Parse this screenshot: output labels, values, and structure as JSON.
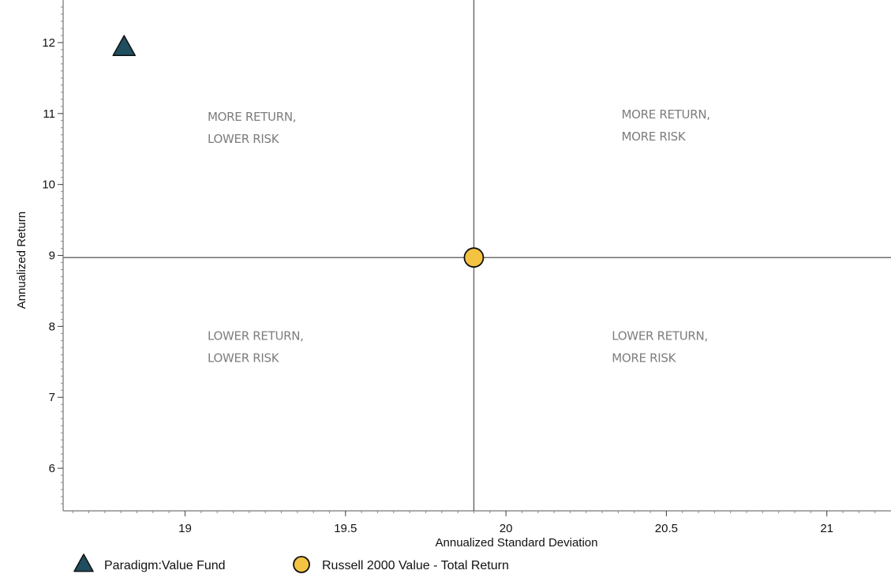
{
  "chart_data": {
    "type": "scatter",
    "xlabel": "Annualized Standard Deviation",
    "ylabel": "Annualized Return",
    "xlim": [
      18.62,
      21.2
    ],
    "ylim": [
      5.4,
      12.6
    ],
    "x_ticks": [
      19,
      19.5,
      20,
      20.5,
      21
    ],
    "y_ticks": [
      6,
      7,
      8,
      9,
      10,
      11,
      12
    ],
    "grid": false,
    "reference_lines": {
      "x": 19.9,
      "y": 8.97
    },
    "series": [
      {
        "name": "Paradigm:Value Fund",
        "marker": "triangle",
        "color": "#1f4e5e",
        "x": [
          18.81
        ],
        "y": [
          11.93
        ]
      },
      {
        "name": "Russell 2000 Value - Total Return",
        "marker": "circle",
        "color": "#f5c342",
        "x": [
          19.9
        ],
        "y": [
          8.97
        ]
      }
    ],
    "annotations": [
      {
        "lines": [
          "MORE RETURN,",
          "LOWER RISK"
        ],
        "x": 19.07,
        "y": 10.9
      },
      {
        "lines": [
          "MORE RETURN,",
          "MORE RISK"
        ],
        "x": 20.36,
        "y": 10.93
      },
      {
        "lines": [
          "LOWER RETURN,",
          "LOWER RISK"
        ],
        "x": 19.07,
        "y": 7.81
      },
      {
        "lines": [
          "LOWER RETURN,",
          "MORE RISK"
        ],
        "x": 20.33,
        "y": 7.81
      }
    ],
    "legend_position": "bottom-left"
  }
}
